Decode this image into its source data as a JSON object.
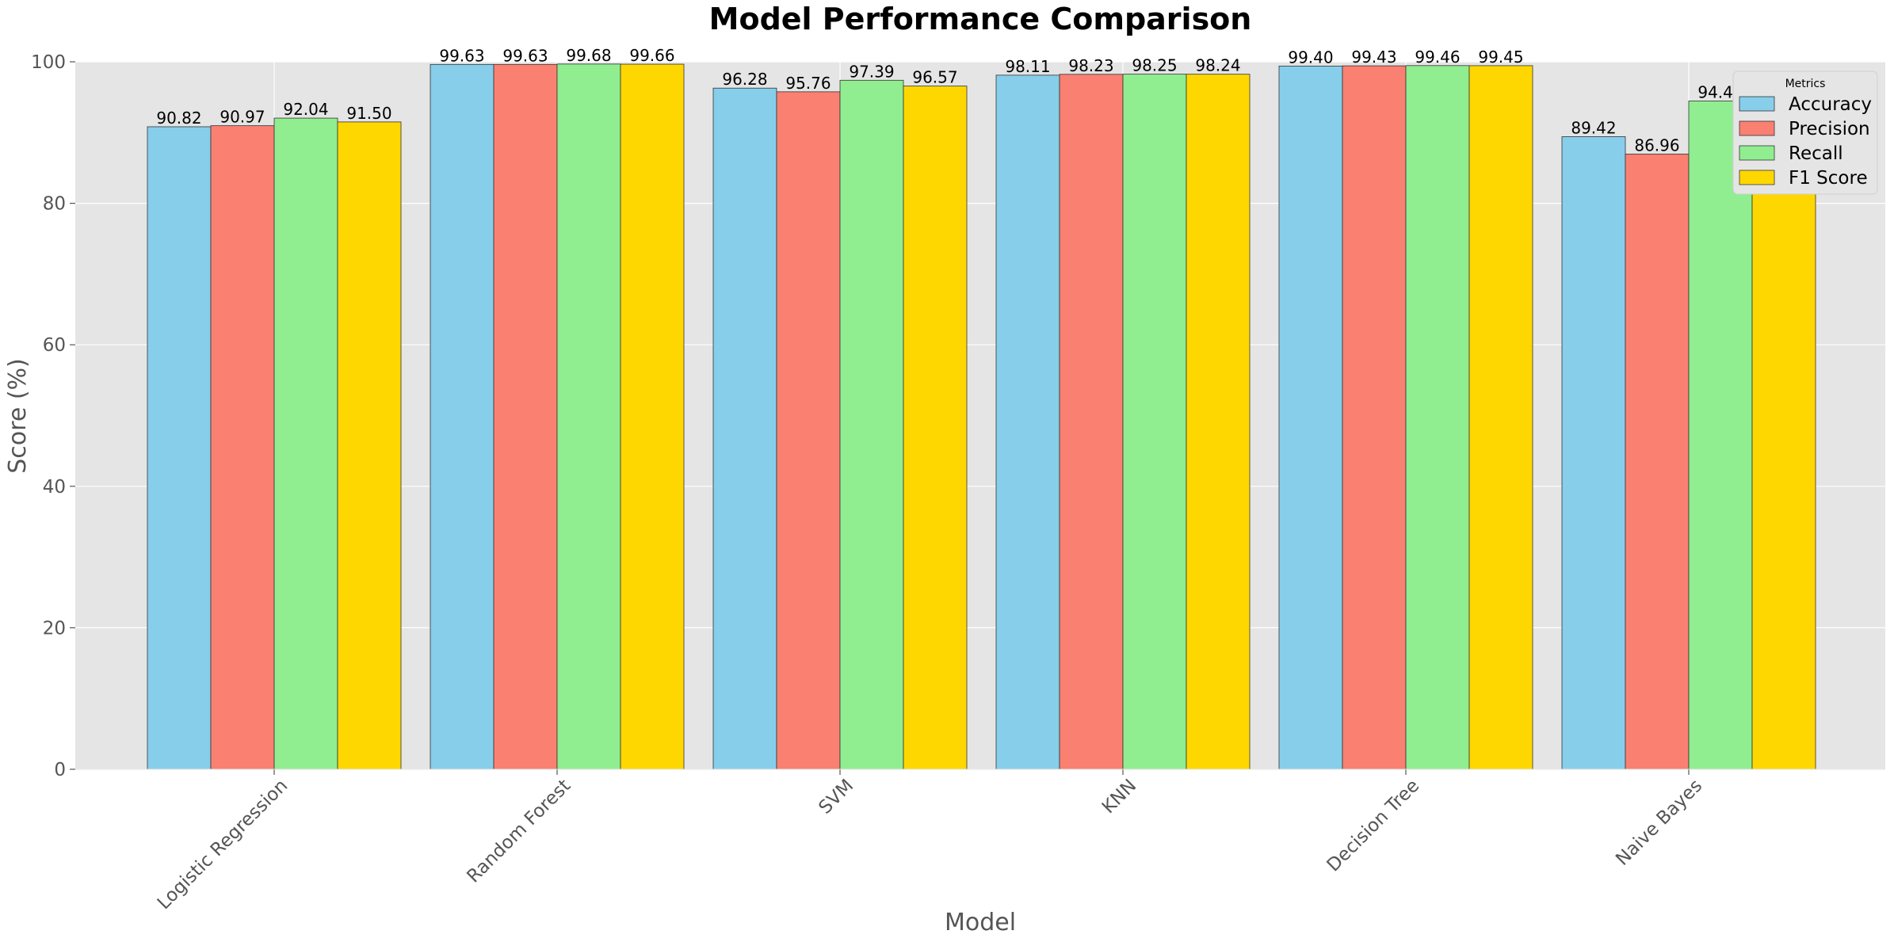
{
  "chart_data": {
    "type": "bar",
    "title": "Model Performance Comparison",
    "xlabel": "Model",
    "ylabel": "Score (%)",
    "ylim": [
      0,
      100
    ],
    "yticks": [
      0,
      20,
      40,
      60,
      80,
      100
    ],
    "grid": true,
    "legend_title": "Metrics",
    "legend_position": "top-right",
    "categories": [
      "Logistic Regression",
      "Random Forest",
      "SVM",
      "KNN",
      "Decision Tree",
      "Naive Bayes"
    ],
    "series": [
      {
        "name": "Accuracy",
        "color": "#87CEEB",
        "values": [
          90.82,
          99.63,
          96.28,
          98.11,
          99.4,
          89.42
        ],
        "labels": [
          "90.82",
          "99.63",
          "96.28",
          "98.11",
          "99.40",
          "89.42"
        ]
      },
      {
        "name": "Precision",
        "color": "#FA8072",
        "values": [
          90.97,
          99.63,
          95.76,
          98.23,
          99.43,
          86.96
        ],
        "labels": [
          "90.97",
          "99.63",
          "95.76",
          "98.23",
          "99.43",
          "86.96"
        ]
      },
      {
        "name": "Recall",
        "color": "#90EE90",
        "values": [
          92.04,
          99.68,
          97.39,
          98.25,
          99.46,
          94.46
        ],
        "labels": [
          "92.04",
          "99.68",
          "97.39",
          "98.25",
          "99.46",
          "94.46"
        ]
      },
      {
        "name": "F1 Score",
        "color": "#FFD700",
        "values": [
          91.5,
          99.66,
          96.57,
          98.24,
          99.45,
          90.55
        ],
        "labels": [
          "91.50",
          "99.66",
          "96.57",
          "98.24",
          "99.45",
          "90.55"
        ]
      }
    ]
  }
}
